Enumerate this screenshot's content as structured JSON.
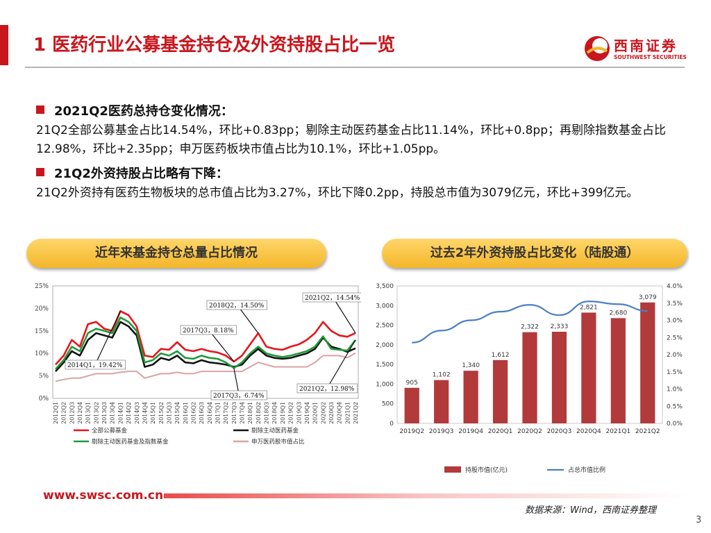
{
  "header": {
    "title": "1 医药行业公募基金持仓及外资持股占比一览",
    "logo_name": "西南证券",
    "logo_en": "SOUTHWEST SECURITIES"
  },
  "section1": {
    "heading": "2021Q2医药总持仓变化情况：",
    "text": "21Q2全部公募基金占比14.54%，环比+0.83pp；剔除主动医药基金占比11.14%，环比+0.8pp；再剔除指数基金占比12.98%，环比+2.35pp；申万医药板块市值占比为10.1%，环比+1.05pp。"
  },
  "section2": {
    "heading": "21Q2外资持股占比略有下降：",
    "text": "21Q2外资持有医药生物板块的总市值占比为3.27%，环比下降0.2pp，持股总市值为3079亿元，环比+399亿元。"
  },
  "left_pill": "近年来基金持仓总量占比情况",
  "right_pill": "过去2年外资持股占比变化（陆股通）",
  "footer": {
    "url": "www.swsc.com.cn",
    "source": "数据来源：Wind，西南证券整理",
    "page": "3"
  },
  "colors": {
    "brand": "#c8161d",
    "pill": "#f6c344"
  },
  "chart_data": [
    {
      "type": "line",
      "ylim": [
        0,
        25
      ],
      "y_ticks": [
        "0%",
        "5%",
        "10%",
        "15%",
        "20%",
        "25%"
      ],
      "categories": [
        "2012Q1",
        "2012Q2",
        "2012Q3",
        "2012Q4",
        "2013Q1",
        "2013Q2",
        "2013Q3",
        "2013Q4",
        "2014Q1",
        "2014Q2",
        "2014Q3",
        "2014Q4",
        "2015Q1",
        "2015Q2",
        "2015Q3",
        "2015Q4",
        "2016Q1",
        "2016Q2",
        "2016Q3",
        "2016Q4",
        "2017Q1",
        "2017Q2",
        "2017Q3",
        "2017Q4",
        "2018Q1",
        "2018Q2",
        "2018Q3",
        "2018Q4",
        "2019Q1",
        "2019Q2",
        "2019Q3",
        "2019Q4",
        "2020Q1",
        "2020Q2",
        "2020Q3",
        "2020Q4",
        "2021Q1",
        "2021Q2"
      ],
      "series": [
        {
          "name": "全部公募基金",
          "color": "#e8141b",
          "values": [
            7.5,
            9.5,
            13.0,
            11.5,
            16.5,
            17.0,
            15.5,
            15.0,
            19.4,
            18.5,
            16.0,
            9.5,
            9.2,
            11.0,
            10.8,
            12.5,
            10.8,
            10.5,
            11.0,
            10.5,
            10.2,
            9.5,
            8.2,
            9.5,
            12.0,
            14.5,
            11.5,
            11.0,
            10.8,
            11.5,
            12.0,
            13.0,
            14.5,
            17.0,
            15.0,
            14.0,
            13.7,
            14.54
          ]
        },
        {
          "name": "剔除主动医药基金",
          "color": "#111111",
          "values": [
            6.0,
            8.0,
            10.5,
            9.5,
            13.0,
            14.5,
            14.0,
            13.5,
            17.0,
            16.0,
            14.0,
            7.0,
            7.5,
            9.0,
            8.5,
            9.5,
            8.0,
            7.8,
            8.5,
            8.0,
            7.8,
            7.5,
            7.0,
            7.5,
            9.5,
            11.0,
            9.5,
            9.0,
            8.8,
            9.0,
            9.5,
            10.0,
            11.0,
            13.5,
            11.5,
            11.0,
            10.34,
            11.14
          ]
        },
        {
          "name": "剔除主动医药基金及指数基金",
          "color": "#1f9a3a",
          "values": [
            6.5,
            8.5,
            11.5,
            10.5,
            14.5,
            15.5,
            15.0,
            14.5,
            18.0,
            17.0,
            15.0,
            8.0,
            8.5,
            10.0,
            9.5,
            10.5,
            9.0,
            8.8,
            9.5,
            9.0,
            8.8,
            8.0,
            6.74,
            8.0,
            10.0,
            11.5,
            10.0,
            9.5,
            9.2,
            9.5,
            10.0,
            10.5,
            11.5,
            13.8,
            11.0,
            10.8,
            10.63,
            12.98
          ]
        },
        {
          "name": "申万医药股市值占比",
          "color": "#d9a3a3",
          "values": [
            3.8,
            4.2,
            4.5,
            4.5,
            5.0,
            5.5,
            5.5,
            5.5,
            5.8,
            6.0,
            6.0,
            4.5,
            5.0,
            5.5,
            5.5,
            5.8,
            5.5,
            5.5,
            6.0,
            6.0,
            6.0,
            6.0,
            6.0,
            6.0,
            7.0,
            8.0,
            7.5,
            7.0,
            7.0,
            7.0,
            7.0,
            7.0,
            8.0,
            9.5,
            9.5,
            9.5,
            9.05,
            10.1
          ]
        }
      ],
      "annotations": [
        "2021Q2，14.54%",
        "2018Q2，14.50%",
        "2017Q3，8.18%",
        "2014Q1，19.42%",
        "2017Q3，6.74%",
        "2021Q2，12.98%"
      ]
    },
    {
      "type": "bar",
      "categories": [
        "2019Q2",
        "2019Q3",
        "2019Q4",
        "2020Q1",
        "2020Q2",
        "2020Q3",
        "2020Q4",
        "2021Q1",
        "2021Q2"
      ],
      "series": [
        {
          "name": "持股市值(亿元)",
          "color": "#b23a3a",
          "values": [
            905,
            1102,
            1340,
            1612,
            2322,
            2333,
            2821,
            2680,
            3079
          ]
        },
        {
          "name": "占总市值比例",
          "color": "#4a7fc1",
          "values": [
            2.35,
            2.7,
            3.0,
            3.25,
            3.45,
            3.15,
            3.55,
            3.47,
            3.27
          ]
        }
      ],
      "ylim": [
        0,
        3500
      ],
      "y_ticks": [
        "0",
        "500",
        "1,000",
        "1,500",
        "2,000",
        "2,500",
        "3,000",
        "3,500"
      ],
      "y2lim": [
        0,
        4.0
      ],
      "y2_ticks": [
        "0.0%",
        "0.5%",
        "1.0%",
        "1.5%",
        "2.0%",
        "2.5%",
        "3.0%",
        "3.5%",
        "4.0%"
      ],
      "bar_labels": [
        "905",
        "1,102",
        "1,340",
        "1,612",
        "2,322",
        "2,333",
        "2,821",
        "2,680",
        "3,079"
      ]
    }
  ]
}
